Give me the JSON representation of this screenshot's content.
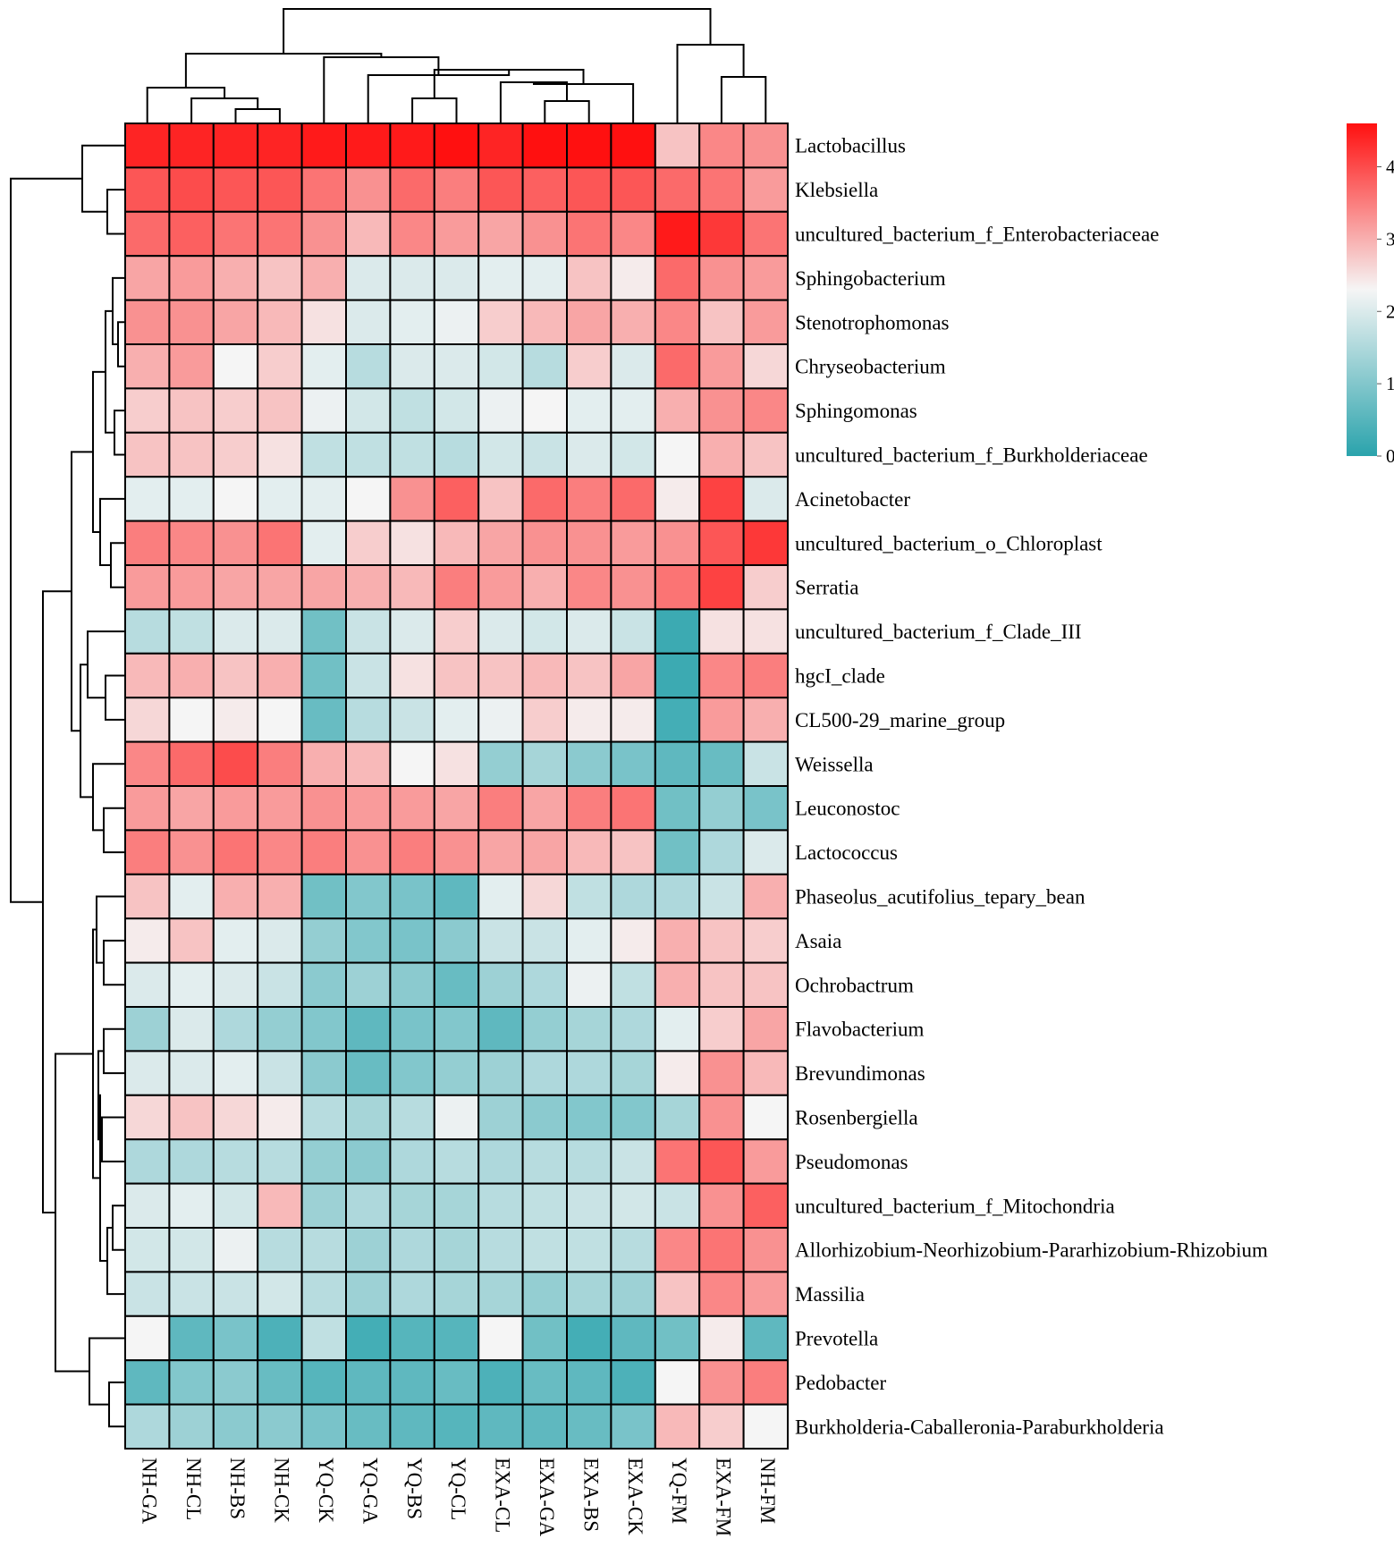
{
  "chart_data": {
    "type": "heatmap",
    "title": "",
    "columns": [
      "NH-GA",
      "NH-CL",
      "NH-BS",
      "NH-CK",
      "YQ-CK",
      "YQ-GA",
      "YQ-BS",
      "YQ-CL",
      "EXA-CL",
      "EXA-GA",
      "EXA-BS",
      "EXA-CK",
      "YQ-FM",
      "EXA-FM",
      "NH-FM"
    ],
    "rows": [
      "Lactobacillus",
      "Klebsiella",
      "uncultured_bacterium_f_Enterobacteriaceae",
      "Sphingobacterium",
      "Stenotrophomonas",
      "Chryseobacterium",
      "Sphingomonas",
      "uncultured_bacterium_f_Burkholderiaceae",
      "Acinetobacter",
      "uncultured_bacterium_o_Chloroplast",
      "Serratia",
      "uncultured_bacterium_f_Clade_III",
      "hgcI_clade",
      "CL500-29_marine_group",
      "Weissella",
      "Leuconostoc",
      "Lactococcus",
      "Phaseolus_acutifolius_tepary_bean",
      "Asaia",
      "Ochrobactrum",
      "Flavobacterium",
      "Brevundimonas",
      "Rosenbergiella",
      "Pseudomonas",
      "uncultured_bacterium_f_Mitochondria",
      "Allorhizobium-Neorhizobium-Pararhizobium-Rhizobium",
      "Massilia",
      "Prevotella",
      "Pedobacter",
      "Burkholderia-Caballeronia-Paraburkholderia"
    ],
    "values": [
      [
        4.4,
        4.4,
        4.4,
        4.4,
        4.5,
        4.5,
        4.5,
        4.6,
        4.4,
        4.6,
        4.6,
        4.6,
        2.8,
        3.4,
        3.3
      ],
      [
        3.9,
        4.0,
        3.9,
        3.9,
        3.6,
        3.3,
        3.7,
        3.5,
        3.9,
        3.8,
        3.9,
        3.9,
        3.7,
        3.6,
        3.2
      ],
      [
        3.7,
        3.8,
        3.6,
        3.6,
        3.3,
        2.9,
        3.4,
        3.2,
        3.1,
        3.3,
        3.6,
        3.4,
        4.5,
        4.2,
        3.6
      ],
      [
        3.1,
        3.2,
        3.0,
        2.8,
        3.0,
        2.0,
        2.0,
        2.0,
        2.1,
        2.1,
        2.8,
        2.4,
        3.7,
        3.3,
        3.2
      ],
      [
        3.3,
        3.3,
        3.1,
        2.9,
        2.5,
        2.0,
        2.1,
        2.2,
        2.7,
        2.9,
        3.1,
        3.0,
        3.4,
        2.8,
        3.2
      ],
      [
        3.0,
        3.2,
        2.3,
        2.7,
        2.1,
        1.6,
        2.0,
        2.0,
        1.9,
        1.6,
        2.7,
        2.0,
        3.7,
        3.2,
        2.6
      ],
      [
        2.7,
        2.8,
        2.7,
        2.8,
        2.2,
        1.9,
        1.7,
        1.9,
        2.2,
        2.3,
        2.1,
        2.1,
        3.0,
        3.3,
        3.4
      ],
      [
        2.8,
        2.8,
        2.7,
        2.5,
        1.7,
        1.7,
        1.7,
        1.6,
        1.9,
        1.8,
        2.0,
        1.9,
        2.3,
        3.0,
        2.8
      ],
      [
        2.1,
        2.1,
        2.3,
        2.1,
        2.1,
        2.3,
        3.3,
        3.8,
        2.8,
        3.7,
        3.5,
        3.7,
        2.4,
        4.1,
        2.0
      ],
      [
        3.5,
        3.4,
        3.3,
        3.6,
        2.1,
        2.7,
        2.5,
        2.9,
        3.1,
        3.3,
        3.3,
        3.2,
        3.3,
        3.9,
        4.2
      ],
      [
        3.2,
        3.2,
        3.1,
        3.1,
        3.1,
        3.0,
        2.9,
        3.5,
        3.2,
        3.0,
        3.4,
        3.3,
        3.6,
        4.1,
        2.7
      ],
      [
        1.6,
        1.7,
        2.0,
        2.0,
        0.8,
        1.8,
        2.0,
        2.7,
        2.0,
        1.9,
        2.0,
        1.8,
        0.2,
        2.5,
        2.5
      ],
      [
        2.9,
        3.0,
        2.8,
        3.0,
        0.8,
        1.8,
        2.5,
        2.8,
        2.8,
        2.9,
        2.8,
        3.1,
        0.2,
        3.4,
        3.5
      ],
      [
        2.6,
        2.3,
        2.4,
        2.3,
        0.7,
        1.6,
        1.8,
        2.1,
        2.2,
        2.7,
        2.4,
        2.4,
        0.3,
        3.2,
        3.0
      ],
      [
        3.4,
        3.7,
        4.0,
        3.5,
        3.0,
        2.9,
        2.3,
        2.5,
        1.2,
        1.4,
        1.1,
        0.9,
        0.6,
        0.7,
        1.8
      ],
      [
        3.2,
        3.1,
        3.2,
        3.2,
        3.3,
        3.2,
        3.2,
        3.1,
        3.5,
        3.1,
        3.5,
        3.6,
        0.8,
        1.2,
        0.9
      ],
      [
        3.5,
        3.3,
        3.6,
        3.4,
        3.5,
        3.3,
        3.5,
        3.3,
        3.1,
        3.1,
        2.9,
        2.8,
        0.8,
        1.5,
        2.0
      ],
      [
        2.8,
        2.1,
        3.0,
        3.0,
        0.8,
        1.0,
        0.9,
        0.6,
        2.1,
        2.6,
        1.7,
        1.5,
        1.5,
        1.8,
        3.0
      ],
      [
        2.4,
        2.8,
        2.1,
        2.0,
        1.2,
        1.0,
        0.9,
        1.1,
        1.8,
        1.8,
        2.1,
        2.4,
        3.0,
        2.8,
        2.7
      ],
      [
        2.0,
        2.1,
        2.0,
        1.8,
        1.1,
        1.3,
        1.1,
        0.7,
        1.3,
        1.5,
        2.2,
        1.7,
        3.0,
        2.8,
        2.8
      ],
      [
        1.3,
        2.0,
        1.5,
        1.2,
        1.0,
        0.6,
        0.9,
        1.0,
        0.6,
        1.2,
        1.4,
        1.5,
        2.1,
        2.7,
        3.1
      ],
      [
        2.0,
        2.0,
        2.1,
        1.8,
        1.1,
        0.7,
        1.0,
        1.2,
        1.3,
        1.5,
        1.5,
        1.4,
        2.4,
        3.3,
        2.9
      ],
      [
        2.6,
        2.8,
        2.6,
        2.4,
        1.6,
        1.4,
        1.6,
        2.2,
        1.3,
        1.1,
        1.0,
        1.0,
        1.4,
        3.3,
        2.3
      ],
      [
        1.5,
        1.5,
        1.6,
        1.6,
        1.2,
        1.1,
        1.5,
        1.6,
        1.5,
        1.6,
        1.6,
        1.8,
        3.6,
        3.9,
        3.2
      ],
      [
        2.0,
        2.1,
        1.9,
        2.9,
        1.3,
        1.5,
        1.4,
        1.4,
        1.6,
        1.7,
        1.8,
        1.9,
        1.8,
        3.3,
        3.8
      ],
      [
        1.9,
        1.9,
        2.2,
        1.6,
        1.6,
        1.3,
        1.5,
        1.4,
        1.6,
        1.7,
        1.7,
        1.6,
        3.4,
        3.6,
        3.3
      ],
      [
        1.8,
        1.8,
        1.8,
        1.9,
        1.6,
        1.3,
        1.5,
        1.4,
        1.4,
        1.2,
        1.4,
        1.3,
        2.8,
        3.4,
        3.2
      ],
      [
        2.3,
        0.6,
        0.9,
        0.4,
        1.7,
        0.3,
        0.5,
        0.5,
        2.3,
        0.8,
        0.3,
        0.6,
        0.8,
        2.4,
        0.6
      ],
      [
        0.6,
        1.0,
        1.1,
        0.7,
        0.5,
        0.6,
        0.6,
        0.7,
        0.4,
        0.7,
        0.6,
        0.4,
        2.3,
        3.3,
        3.5
      ],
      [
        1.5,
        1.3,
        1.1,
        1.1,
        0.9,
        0.7,
        0.6,
        0.5,
        0.6,
        0.6,
        0.7,
        0.9,
        2.9,
        2.7,
        2.3
      ]
    ],
    "scale": {
      "min": 0,
      "max": 4.6,
      "ticks": [
        0,
        1,
        2,
        3,
        4
      ],
      "colors": {
        "low": "#2aa3ac",
        "mid": "#f5f5f5",
        "high": "#ff1010"
      },
      "mid_value": 2.3
    },
    "legend": "top-right",
    "dendrogram": {
      "columns": true,
      "rows": true
    }
  }
}
